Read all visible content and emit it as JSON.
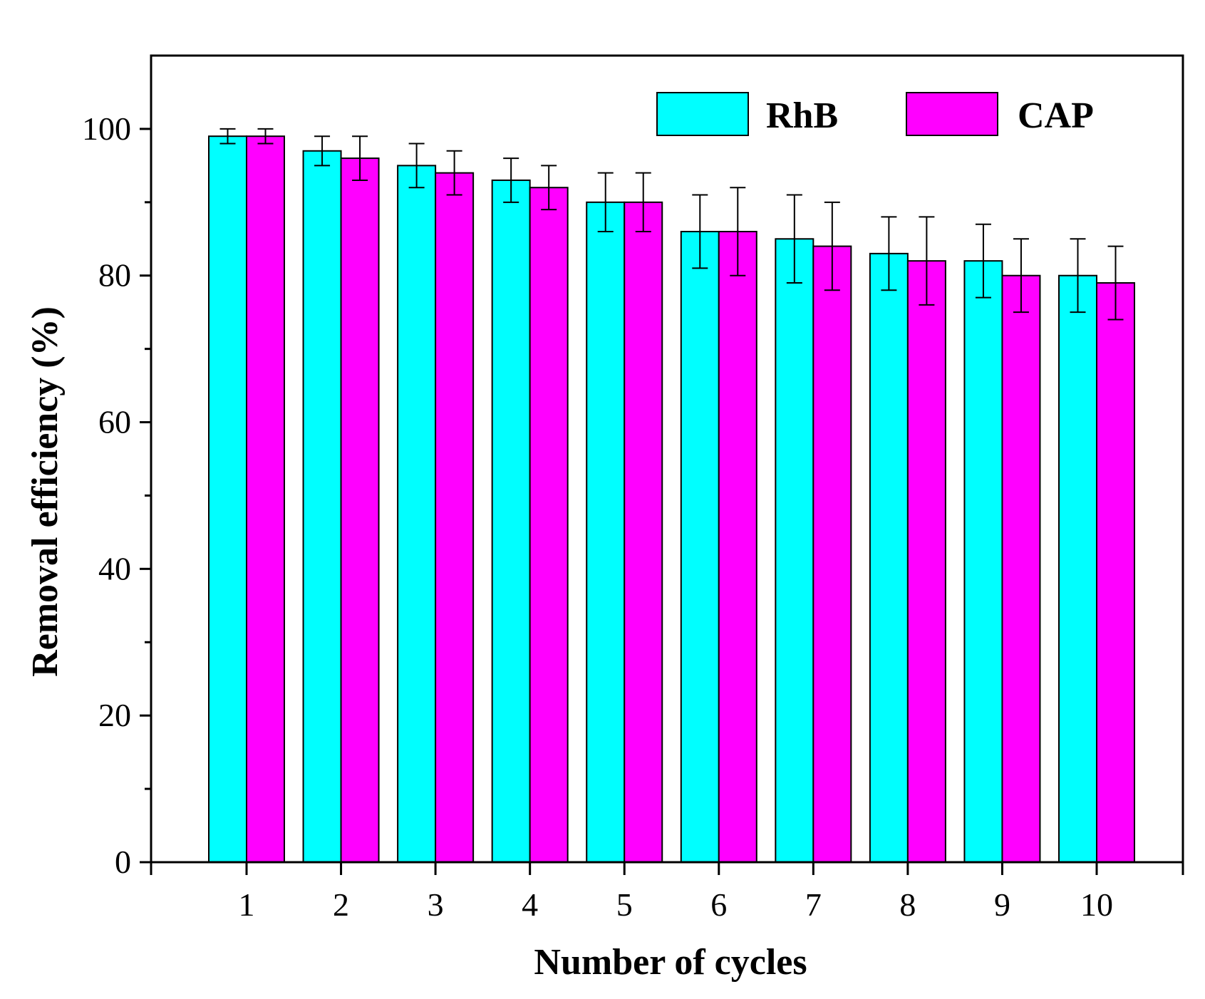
{
  "chart_data": {
    "type": "bar",
    "xlabel": "Number of cycles",
    "ylabel": "Removal efficiency (%)",
    "ylim": [
      0,
      110
    ],
    "yticks": [
      0,
      20,
      40,
      60,
      80,
      100
    ],
    "categories": [
      "1",
      "2",
      "3",
      "4",
      "5",
      "6",
      "7",
      "8",
      "9",
      "10"
    ],
    "legend_position": "top-right",
    "grid": false,
    "series": [
      {
        "name": "RhB",
        "color": "#00FFFF",
        "values": [
          99,
          97,
          95,
          93,
          90,
          86,
          85,
          83,
          82,
          80
        ],
        "errors": [
          1,
          2,
          3,
          3,
          4,
          5,
          6,
          5,
          5,
          5
        ]
      },
      {
        "name": "CAP",
        "color": "#FF00FF",
        "values": [
          99,
          96,
          94,
          92,
          90,
          86,
          84,
          82,
          80,
          79
        ],
        "errors": [
          1,
          3,
          3,
          3,
          4,
          6,
          6,
          6,
          5,
          5
        ]
      }
    ]
  }
}
